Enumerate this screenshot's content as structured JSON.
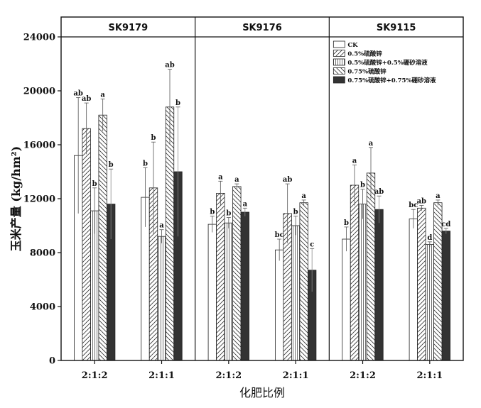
{
  "chart_data": {
    "type": "bar",
    "ylabel": "玉米产量 (kg/hm²)",
    "xlabel": "化肥比例",
    "ylim": [
      0,
      24000
    ],
    "yticks": [
      "0",
      "4000",
      "8000",
      "12000",
      "16000",
      "20000",
      "24000"
    ],
    "ytick_values": [
      0,
      4000,
      8000,
      12000,
      16000,
      20000,
      24000
    ],
    "legend_position": "top-right",
    "series": [
      {
        "name": "CK",
        "pattern": "empty"
      },
      {
        "name": "0.5%硫酸锌",
        "pattern": "diag-right"
      },
      {
        "name": "0.5%硫酸锌+0.5%硼砂溶液",
        "pattern": "vertical"
      },
      {
        "name": "0.75%硫酸锌",
        "pattern": "diag-left"
      },
      {
        "name": "0.75%硫酸锌+0.75%硼砂溶液",
        "pattern": "solid"
      }
    ],
    "panels": [
      {
        "title": "SK9179",
        "groups": [
          {
            "label": "2:1:2",
            "values": [
              15200,
              17200,
              11100,
              18200,
              11600
            ],
            "errors": [
              4300,
              1900,
              1700,
              1200,
              2600
            ],
            "letters": [
              "ab",
              "ab",
              "b",
              "a",
              "b"
            ]
          },
          {
            "label": "2:1:1",
            "values": [
              12100,
              12800,
              9200,
              18800,
              14000
            ],
            "errors": [
              2200,
              3400,
              500,
              2800,
              4800
            ],
            "letters": [
              "b",
              "b",
              "a",
              "ab",
              "b"
            ]
          }
        ]
      },
      {
        "title": "SK9176",
        "groups": [
          {
            "label": "2:1:2",
            "values": [
              10100,
              12400,
              10200,
              12900,
              11000
            ],
            "errors": [
              600,
              900,
              400,
              200,
              300
            ],
            "letters": [
              "b",
              "a",
              "b",
              "a",
              "a"
            ]
          },
          {
            "label": "2:1:1",
            "values": [
              8200,
              10900,
              10000,
              11700,
              6700
            ],
            "errors": [
              800,
              2200,
              700,
              200,
              1600
            ],
            "letters": [
              "bc",
              "ab",
              "b",
              "a",
              "c"
            ]
          }
        ]
      },
      {
        "title": "SK9115",
        "groups": [
          {
            "label": "2:1:2",
            "values": [
              9000,
              13000,
              11600,
              13900,
              11200
            ],
            "errors": [
              900,
              1500,
              1100,
              1900,
              1000
            ],
            "letters": [
              "b",
              "a",
              "b",
              "a",
              "ab"
            ]
          },
          {
            "label": "2:1:1",
            "values": [
              10500,
              11300,
              8600,
              11700,
              9600
            ],
            "errors": [
              700,
              200,
              200,
              200,
              200
            ],
            "letters": [
              "bc",
              "ab",
              "d",
              "a",
              "cd"
            ]
          }
        ]
      }
    ]
  }
}
